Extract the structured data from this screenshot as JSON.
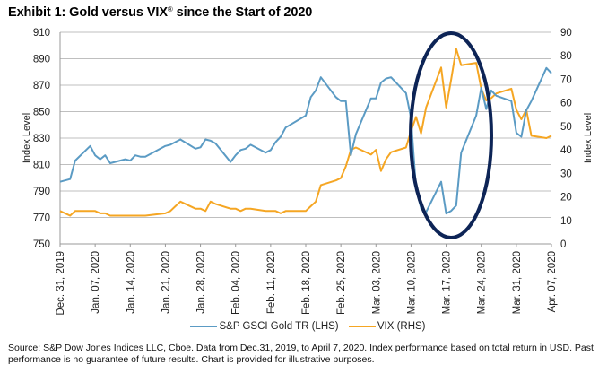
{
  "title": {
    "main": "Exhibit 1: Gold versus VIX",
    "reg": "®",
    "rest": " since the Start of 2020"
  },
  "source": "Source: S&P Dow Jones Indices LLC, Cboe. Data from Dec.31, 2019, to April 7, 2020. Index performance based on total return in USD. Past performance is no guarantee of future results. Chart is provided for illustrative purposes.",
  "colors": {
    "gold": "#5b9bc4",
    "vix": "#f5a623",
    "ellipse": "#0d2456",
    "grid": "#bfbfbf"
  },
  "chart_data": {
    "type": "line",
    "title": "Exhibit 1: Gold versus VIX® since the Start of 2020",
    "xlabel": "",
    "ylabel_left": "Index Level",
    "ylabel_right": "Index Level",
    "ylim_left": [
      750,
      910
    ],
    "ylim_right": [
      0,
      90
    ],
    "yticks_left": [
      "750",
      "770",
      "790",
      "810",
      "830",
      "850",
      "870",
      "890",
      "910"
    ],
    "yticks_right": [
      "0",
      "10",
      "20",
      "30",
      "40",
      "50",
      "60",
      "70",
      "80",
      "90"
    ],
    "xticks": [
      "Dec. 31, 2019",
      "Jan. 07, 2020",
      "Jan. 14, 2020",
      "Jan. 21, 2020",
      "Jan. 28, 2020",
      "Feb. 04, 2020",
      "Feb. 11, 2020",
      "Feb. 18, 2020",
      "Feb. 25, 2020",
      "Mar. 03, 2020",
      "Mar. 10, 2020",
      "Mar. 17, 2020",
      "Mar. 24, 2020",
      "Mar. 31, 2020",
      "Apr. 07, 2020"
    ],
    "x_days": [
      0,
      2,
      3,
      6,
      7,
      8,
      9,
      10,
      13,
      14,
      15,
      16,
      17,
      21,
      22,
      23,
      24,
      27,
      28,
      29,
      30,
      31,
      34,
      35,
      36,
      37,
      38,
      41,
      42,
      43,
      44,
      45,
      49,
      50,
      51,
      52,
      55,
      56,
      57,
      58,
      59,
      62,
      63,
      64,
      65,
      66,
      69,
      70,
      71,
      72,
      73,
      76,
      77,
      78,
      79,
      80,
      83,
      84,
      85,
      86,
      87,
      90,
      91,
      92,
      93,
      94,
      97,
      98
    ],
    "series": [
      {
        "name": "S&P GSCI Gold TR (LHS)",
        "axis": "left",
        "values": [
          797,
          799,
          813,
          824,
          817,
          814,
          817,
          811,
          814,
          813,
          817,
          816,
          816,
          824,
          825,
          827,
          829,
          822,
          823,
          829,
          828,
          826,
          812,
          817,
          821,
          822,
          825,
          819,
          821,
          827,
          831,
          838,
          847,
          861,
          866,
          876,
          861,
          858,
          858,
          817,
          833,
          860,
          860,
          872,
          875,
          876,
          864,
          845,
          792,
          777,
          774,
          797,
          773,
          775,
          779,
          819,
          847,
          868,
          852,
          866,
          862,
          858,
          834,
          831,
          851,
          858,
          883,
          879
        ],
        "note": "daily values approximated from chart"
      },
      {
        "name": "VIX (RHS)",
        "axis": "right",
        "values": [
          14,
          12,
          14,
          14,
          14,
          13,
          13,
          12,
          12,
          12,
          12,
          12,
          12,
          13,
          14,
          16,
          18,
          15,
          15,
          14,
          18,
          17,
          15,
          15,
          14,
          15,
          15,
          14,
          14,
          14,
          13,
          14,
          14,
          16,
          18,
          25,
          27,
          28,
          33,
          40,
          41,
          38,
          40,
          31,
          36,
          39,
          41,
          48,
          54,
          47,
          58,
          75,
          58,
          70,
          83,
          76,
          77,
          66,
          61,
          62,
          64,
          66,
          57,
          53,
          57,
          46,
          45,
          46
        ],
        "note": "daily values approximated from chart"
      }
    ],
    "legend": "bottom-center",
    "grid": true,
    "annotation": "dark navy ellipse highlighting mid-March 2020 (approx. Mar. 09 – Mar. 24)"
  },
  "legend": {
    "gold_label": "S&P GSCI Gold TR (LHS)",
    "vix_label": "VIX (RHS)"
  }
}
